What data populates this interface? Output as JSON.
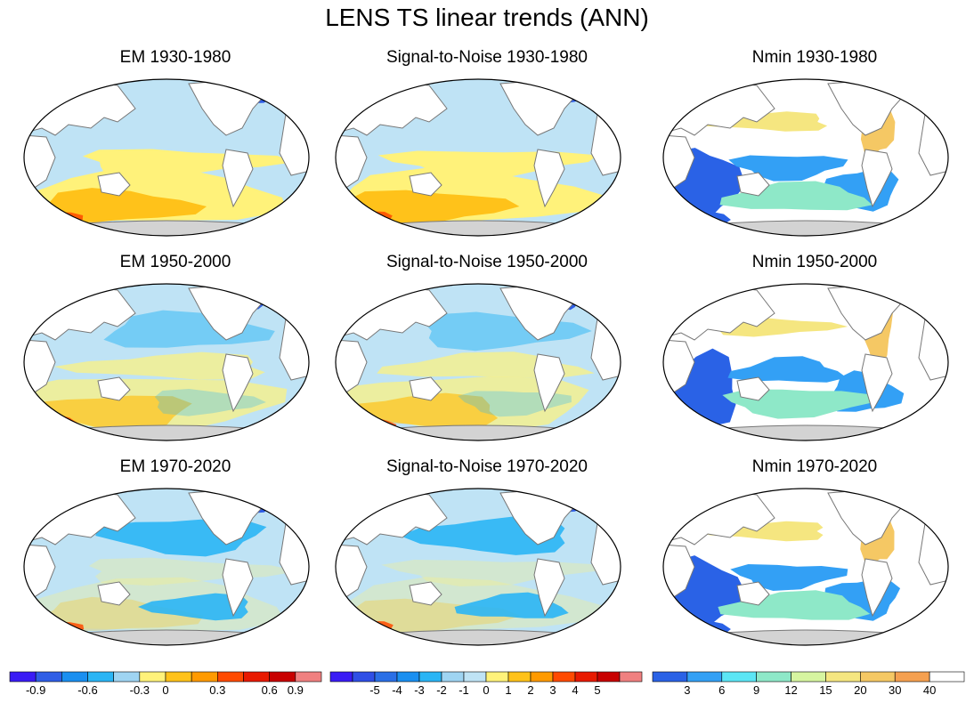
{
  "title": "LENS TS linear trends (ANN)",
  "panels": [
    {
      "title": "EM 1930-1980",
      "kind": "em",
      "period": "1930-1980"
    },
    {
      "title": "Signal-to-Noise 1930-1980",
      "kind": "sn",
      "period": "1930-1980"
    },
    {
      "title": "Nmin 1930-1980",
      "kind": "nmin",
      "period": "1930-1980"
    },
    {
      "title": "EM 1950-2000",
      "kind": "em",
      "period": "1950-2000"
    },
    {
      "title": "Signal-to-Noise 1950-2000",
      "kind": "sn",
      "period": "1950-2000"
    },
    {
      "title": "Nmin 1950-2000",
      "kind": "nmin",
      "period": "1950-2000"
    },
    {
      "title": "EM 1970-2020",
      "kind": "em",
      "period": "1970-2020"
    },
    {
      "title": "Signal-to-Noise 1970-2020",
      "kind": "sn",
      "period": "1970-2020"
    },
    {
      "title": "Nmin 1970-2020",
      "kind": "nmin",
      "period": "1970-2020"
    }
  ],
  "colorbars": [
    {
      "name": "em",
      "labels": [
        "-0.9",
        "-0.6",
        "-0.3",
        "0",
        "0.3",
        "0.6",
        "0.9"
      ],
      "colors": [
        "#3a1cf5",
        "#2f5ee6",
        "#1a8ff0",
        "#2ab5f5",
        "#9fd4f2",
        "#fff27a",
        "#ffc21a",
        "#ff9a00",
        "#ff4a00",
        "#e81a00",
        "#c80000",
        "#f08080"
      ]
    },
    {
      "name": "sn",
      "labels": [
        "-5",
        "-4",
        "-3",
        "-2",
        "-1",
        "0",
        "1",
        "2",
        "3",
        "4",
        "5"
      ],
      "colors": [
        "#3a1cf5",
        "#2f4fe6",
        "#2a6fe6",
        "#1a8ff0",
        "#2ab5f5",
        "#9fd4f2",
        "#bfe3f5",
        "#fff27a",
        "#ffc21a",
        "#ff9a00",
        "#ff4a00",
        "#e81a00",
        "#c80000",
        "#f08080"
      ]
    },
    {
      "name": "nmin",
      "labels": [
        "3",
        "6",
        "9",
        "12",
        "15",
        "20",
        "30",
        "40"
      ],
      "colors": [
        "#2a62e6",
        "#33a0f5",
        "#5ce6f5",
        "#8ee8c8",
        "#d6f5a0",
        "#f5e680",
        "#f5c864",
        "#f5a050",
        "#ffffff"
      ]
    }
  ],
  "panel_colors": {
    "em": {
      "land": "#ffffff",
      "ocean_main": "#bfe3f5",
      "warm1": "#fff27a",
      "warm2": "#ffc21a",
      "warm3": "#ff9a00",
      "warm4": "#ff4a00",
      "cool1": "#2ab5f5",
      "cool2": "#2f5ee6"
    },
    "nmin": {
      "land": "#ffffff",
      "ocean_main": "#ffffff",
      "warm1": "#f5c864",
      "warm2": "#f5e680",
      "warm3": "#8ee8c8",
      "warm4": "#2a62e6",
      "cool1": "#33a0f5",
      "cool2": "#2a62e6"
    },
    "antarctica": "#d3d3d3"
  }
}
